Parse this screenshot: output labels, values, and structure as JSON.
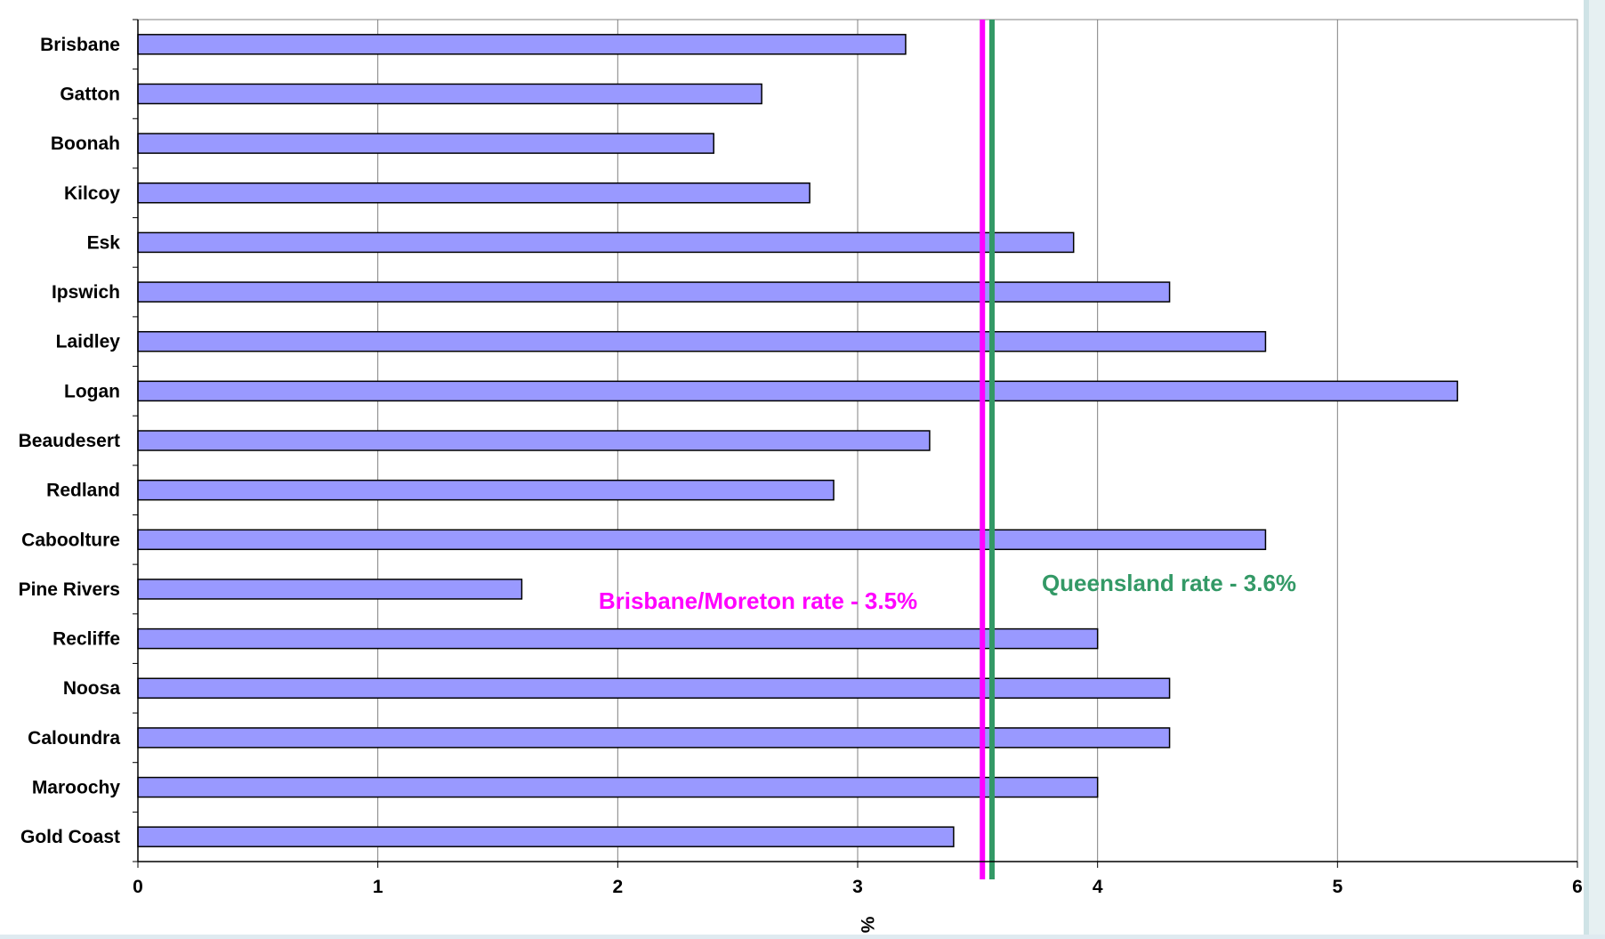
{
  "chart_data": {
    "type": "bar",
    "orientation": "horizontal",
    "categories": [
      "Brisbane",
      "Gatton",
      "Boonah",
      "Kilcoy",
      "Esk",
      "Ipswich",
      "Laidley",
      "Logan",
      "Beaudesert",
      "Redland",
      "Caboolture",
      "Pine Rivers",
      "Recliffe",
      "Noosa",
      "Caloundra",
      "Maroochy",
      "Gold Coast"
    ],
    "values": [
      3.2,
      2.6,
      2.4,
      2.8,
      3.9,
      4.3,
      4.7,
      5.5,
      3.3,
      2.9,
      4.7,
      1.6,
      4.0,
      4.3,
      4.3,
      4.0,
      3.4
    ],
    "xlabel": "%",
    "xlim": [
      0,
      6
    ],
    "xticks": [
      "0",
      "1",
      "2",
      "3",
      "4",
      "5",
      "6"
    ],
    "grid": "vertical",
    "colors": {
      "bar": "#9999ff",
      "bar_border": "#000000"
    },
    "reference_lines": [
      {
        "label": "Brisbane/Moreton rate - 3.5%",
        "value": 3.52,
        "color": "#ff00ff"
      },
      {
        "label": "Queensland rate - 3.6%",
        "value": 3.56,
        "color": "#339966"
      }
    ]
  }
}
